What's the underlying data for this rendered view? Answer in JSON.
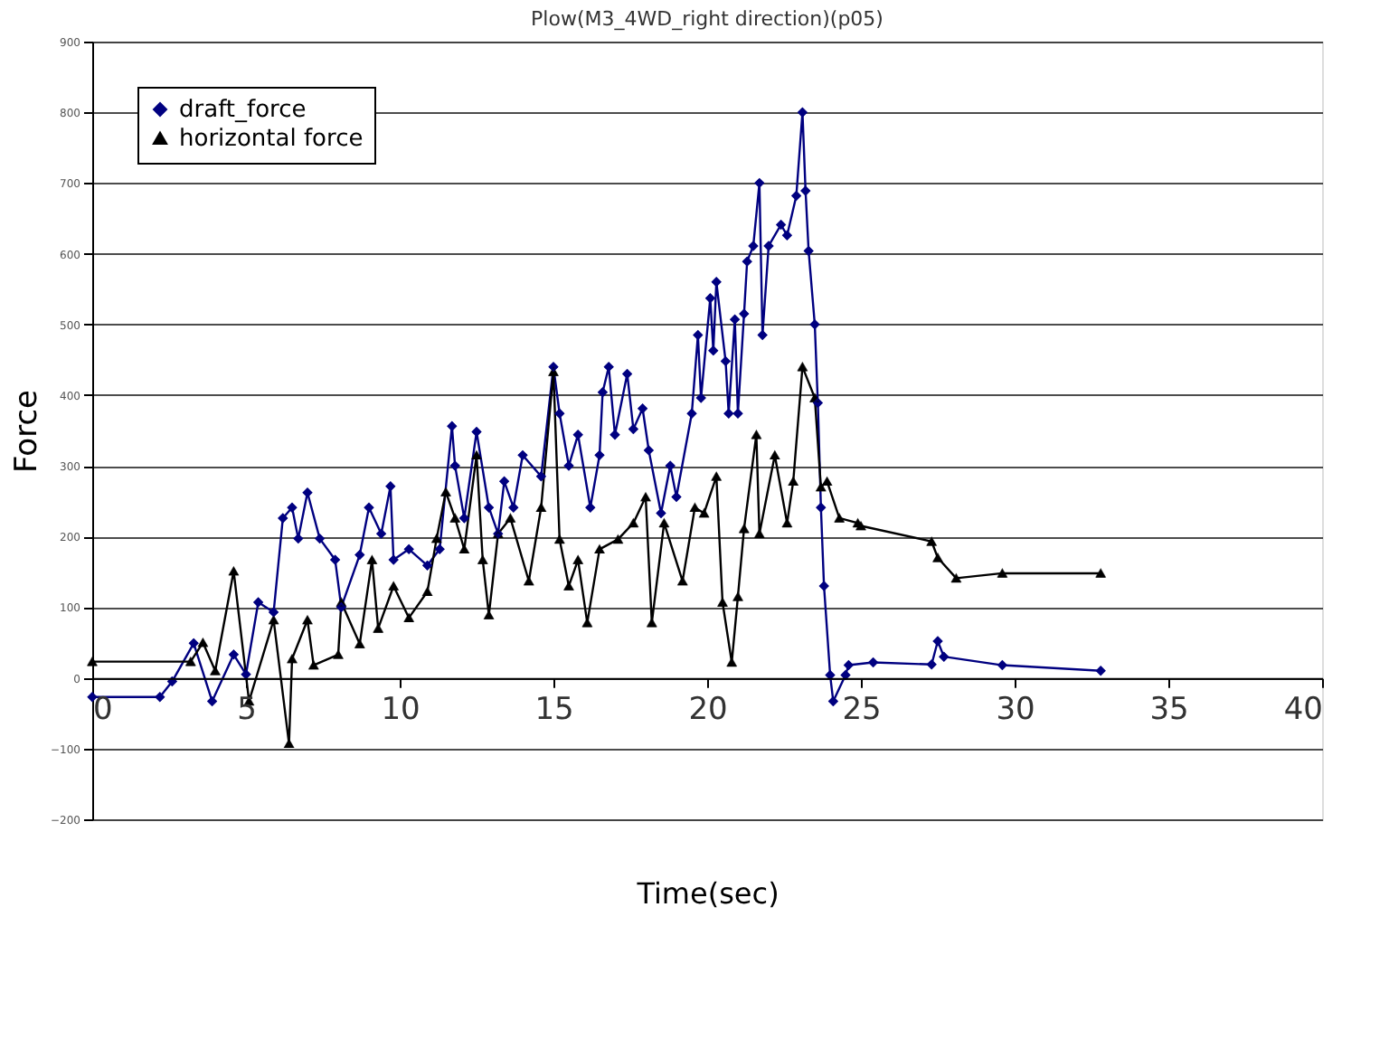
{
  "chart_data": {
    "type": "line",
    "title": "Plow(M3_4WD_right direction)(p05)",
    "xlabel": "Time(sec)",
    "ylabel": "Force",
    "xlim": [
      0,
      40
    ],
    "xticks": [
      0,
      5,
      10,
      15,
      20,
      25,
      30,
      35,
      40
    ],
    "ylim": [
      -200,
      900
    ],
    "yticks": [
      -200,
      -100,
      0,
      100,
      200,
      300,
      400,
      500,
      600,
      700,
      800,
      900
    ],
    "grid": "y",
    "legend": "top left",
    "line_style": "solid",
    "series": [
      {
        "name": "draft_force",
        "color": "#000080",
        "marker": "diamond",
        "x": [
          0,
          2.2,
          2.6,
          3.3,
          3.9,
          4.6,
          5.0,
          5.4,
          5.9,
          6.2,
          6.5,
          6.7,
          7.0,
          7.4,
          7.9,
          8.1,
          8.7,
          9.0,
          9.4,
          9.7,
          9.8,
          10.3,
          10.9,
          11.3,
          11.7,
          11.8,
          12.1,
          12.5,
          12.9,
          13.2,
          13.4,
          13.7,
          14.0,
          14.6,
          15.0,
          15.2,
          15.5,
          15.8,
          16.2,
          16.5,
          16.6,
          16.8,
          17.0,
          17.4,
          17.6,
          17.9,
          18.1,
          18.5,
          18.8,
          19.0,
          19.5,
          19.7,
          19.8,
          20.1,
          20.2,
          20.3,
          20.6,
          20.7,
          20.9,
          21.0,
          21.2,
          21.3,
          21.5,
          21.7,
          21.8,
          22.0,
          22.4,
          22.6,
          22.9,
          23.1,
          23.2,
          23.3,
          23.5,
          23.6,
          23.7,
          23.8,
          24.0,
          24.1,
          24.5,
          24.6,
          25.4,
          27.3,
          27.5,
          27.7,
          29.6,
          32.8
        ],
        "values": [
          -27,
          -27,
          -5,
          49,
          -33,
          33,
          5,
          107,
          93,
          226,
          241,
          197,
          262,
          197,
          167,
          100,
          174,
          241,
          204,
          271,
          167,
          182,
          159,
          182,
          356,
          300,
          226,
          348,
          241,
          204,
          278,
          241,
          315,
          285,
          440,
          374,
          300,
          344,
          241,
          315,
          404,
          440,
          344,
          430,
          352,
          381,
          322,
          233,
          300,
          256,
          374,
          485,
          396,
          537,
          463,
          560,
          448,
          374,
          507,
          374,
          515,
          589,
          611,
          700,
          485,
          611,
          641,
          626,
          682,
          800,
          689,
          604,
          500,
          389,
          241,
          130,
          4,
          -33,
          4,
          18,
          22,
          19,
          52,
          30,
          18,
          10
        ]
      },
      {
        "name": "horizontal force",
        "color": "#000000",
        "marker": "triangle",
        "x": [
          0,
          3.2,
          3.6,
          4.0,
          4.6,
          5.1,
          5.9,
          6.4,
          6.5,
          7.0,
          7.2,
          8.0,
          8.1,
          8.7,
          9.1,
          9.3,
          9.8,
          10.3,
          10.9,
          11.2,
          11.5,
          11.8,
          12.1,
          12.5,
          12.7,
          12.9,
          13.2,
          13.6,
          14.2,
          14.6,
          15.0,
          15.2,
          15.5,
          15.8,
          16.1,
          16.5,
          17.1,
          17.6,
          18.0,
          18.2,
          18.6,
          19.2,
          19.6,
          19.9,
          20.3,
          20.5,
          20.8,
          21.0,
          21.2,
          21.6,
          21.7,
          22.2,
          22.6,
          22.8,
          23.1,
          23.5,
          23.7,
          23.9,
          24.3,
          24.9,
          25.0,
          27.3,
          27.5,
          28.1,
          29.6,
          32.8
        ],
        "values": [
          23,
          23,
          50,
          10,
          151,
          -33,
          82,
          -93,
          27,
          82,
          18,
          33,
          107,
          48,
          167,
          70,
          130,
          85,
          122,
          197,
          263,
          226,
          182,
          315,
          167,
          89,
          204,
          226,
          137,
          241,
          433,
          196,
          130,
          167,
          78,
          182,
          196,
          219,
          256,
          78,
          219,
          137,
          241,
          233,
          285,
          107,
          22,
          115,
          211,
          344,
          204,
          315,
          219,
          278,
          440,
          396,
          270,
          278,
          226,
          219,
          215,
          193,
          170,
          141,
          148,
          148
        ]
      }
    ]
  }
}
